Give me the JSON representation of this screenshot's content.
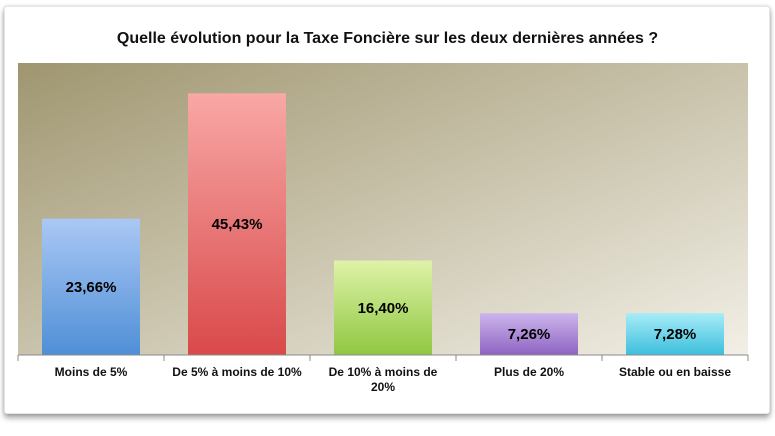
{
  "chart_data": {
    "type": "bar",
    "title": "Quelle évolution pour la Taxe Foncière sur les deux dernières années ?",
    "categories": [
      [
        "Moins de 5%"
      ],
      [
        "De 5% à moins de 10%"
      ],
      [
        "De 10% à moins de",
        "20%"
      ],
      [
        "Plus de 20%"
      ],
      [
        "Stable ou en baisse"
      ]
    ],
    "values": [
      23.66,
      45.43,
      16.4,
      7.26,
      7.28
    ],
    "data_labels": [
      "23,66%",
      "45,43%",
      "16,40%",
      "7,26%",
      "7,28%"
    ],
    "ylim": [
      0,
      50
    ],
    "grid": false,
    "legend": "none",
    "colors": {
      "bars": [
        [
          "#aac8f5",
          "#4f8fd6"
        ],
        [
          "#f8a8a6",
          "#d9494a"
        ],
        [
          "#dff3a8",
          "#8fc741"
        ],
        [
          "#cdb5ec",
          "#8e63c2"
        ],
        [
          "#a8ecf8",
          "#3cbfdc"
        ]
      ],
      "plot_bg": [
        "#9f9670",
        "#f2efe6"
      ]
    }
  }
}
